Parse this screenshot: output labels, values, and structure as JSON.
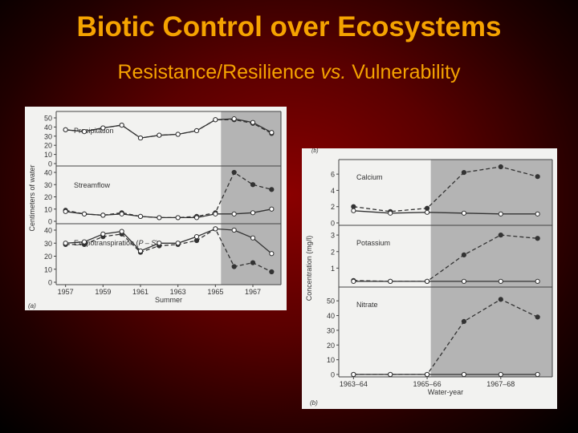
{
  "title": "Biotic Control over Ecosystems",
  "subtitle_part1": "Resistance/Resilience",
  "subtitle_vs": "vs.",
  "subtitle_part2": "Vulnerability",
  "chart_data": [
    {
      "type": "line",
      "panel_label": "(a)",
      "xlabel": "Summer",
      "ylabel": "Centimeters of water",
      "x": [
        1957,
        1958,
        1959,
        1960,
        1961,
        1962,
        1963,
        1964,
        1965,
        1966,
        1967,
        1968
      ],
      "x_tick_labels": [
        "1957",
        "1959",
        "1961",
        "1963",
        "1965",
        "1967"
      ],
      "shaded_from": 1965.3,
      "subplots": [
        {
          "label": "Precipitation",
          "ylim": [
            0,
            50
          ],
          "y_ticks": [
            0,
            10,
            20,
            30,
            40,
            50
          ],
          "series": [
            {
              "style": "dashed-filled",
              "values": [
                37,
                35,
                39,
                42,
                28,
                31,
                32,
                36,
                48,
                48,
                44,
                33
              ]
            },
            {
              "style": "solid-open",
              "values": [
                37,
                35,
                39,
                42,
                28,
                31,
                32,
                36,
                48,
                49,
                45,
                34
              ]
            }
          ]
        },
        {
          "label": "Streamflow",
          "ylim": [
            0,
            40
          ],
          "y_ticks": [
            0,
            10,
            20,
            30,
            40
          ],
          "series": [
            {
              "style": "dashed-filled",
              "values": [
                9,
                6,
                5,
                7,
                4,
                3,
                3,
                4,
                7,
                40,
                30,
                26
              ]
            },
            {
              "style": "solid-open",
              "values": [
                8,
                6,
                5,
                6,
                4,
                3,
                3,
                3,
                6,
                6,
                7,
                10
              ]
            }
          ]
        },
        {
          "label_main": "Evapotranspiration (",
          "label_italic": "P – S",
          "label_end": ")",
          "ylim": [
            0,
            40
          ],
          "y_ticks": [
            0,
            10,
            20,
            30,
            40
          ],
          "series": [
            {
              "style": "dashed-filled",
              "values": [
                29,
                29,
                35,
                37,
                23,
                28,
                29,
                32,
                41,
                12,
                15,
                8
              ]
            },
            {
              "style": "solid-open",
              "values": [
                30,
                31,
                37,
                39,
                24,
                30,
                30,
                35,
                41,
                40,
                34,
                22
              ]
            }
          ]
        }
      ]
    },
    {
      "type": "line",
      "panel_label_top": "(b)",
      "panel_label": "(b)",
      "xlabel": "Water-year",
      "ylabel": "Concentration (mg/l)",
      "x": [
        0,
        1,
        2,
        3,
        4,
        5
      ],
      "x_tick_labels": [
        "1963–64",
        "1965–66",
        "1967–68"
      ],
      "x_tick_positions": [
        0,
        2,
        4
      ],
      "shaded_from": 2.1,
      "subplots": [
        {
          "label": "Calcium",
          "ylim": [
            0,
            7
          ],
          "y_ticks": [
            0,
            2,
            4,
            6
          ],
          "series": [
            {
              "style": "dashed-filled",
              "values": [
                2.0,
                1.4,
                1.8,
                6.2,
                6.9,
                5.7
              ]
            },
            {
              "style": "solid-open",
              "values": [
                1.5,
                1.2,
                1.3,
                1.2,
                1.1,
                1.1
              ]
            }
          ]
        },
        {
          "label": "Potassium",
          "ylim": [
            0,
            3.2
          ],
          "y_ticks": [
            1,
            2,
            3
          ],
          "series": [
            {
              "style": "dashed-filled",
              "values": [
                0.25,
                0.2,
                0.2,
                1.8,
                3.0,
                2.8
              ]
            },
            {
              "style": "solid-open",
              "values": [
                0.2,
                0.2,
                0.2,
                0.2,
                0.2,
                0.2
              ]
            }
          ]
        },
        {
          "label": "Nitrate",
          "ylim": [
            0,
            55
          ],
          "y_ticks": [
            0,
            10,
            20,
            30,
            40,
            50
          ],
          "series": [
            {
              "style": "dashed-filled",
              "values": [
                0,
                0,
                0,
                36,
                51,
                39
              ]
            },
            {
              "style": "solid-open",
              "values": [
                0,
                0,
                0,
                0,
                0,
                0
              ]
            }
          ]
        }
      ]
    }
  ]
}
